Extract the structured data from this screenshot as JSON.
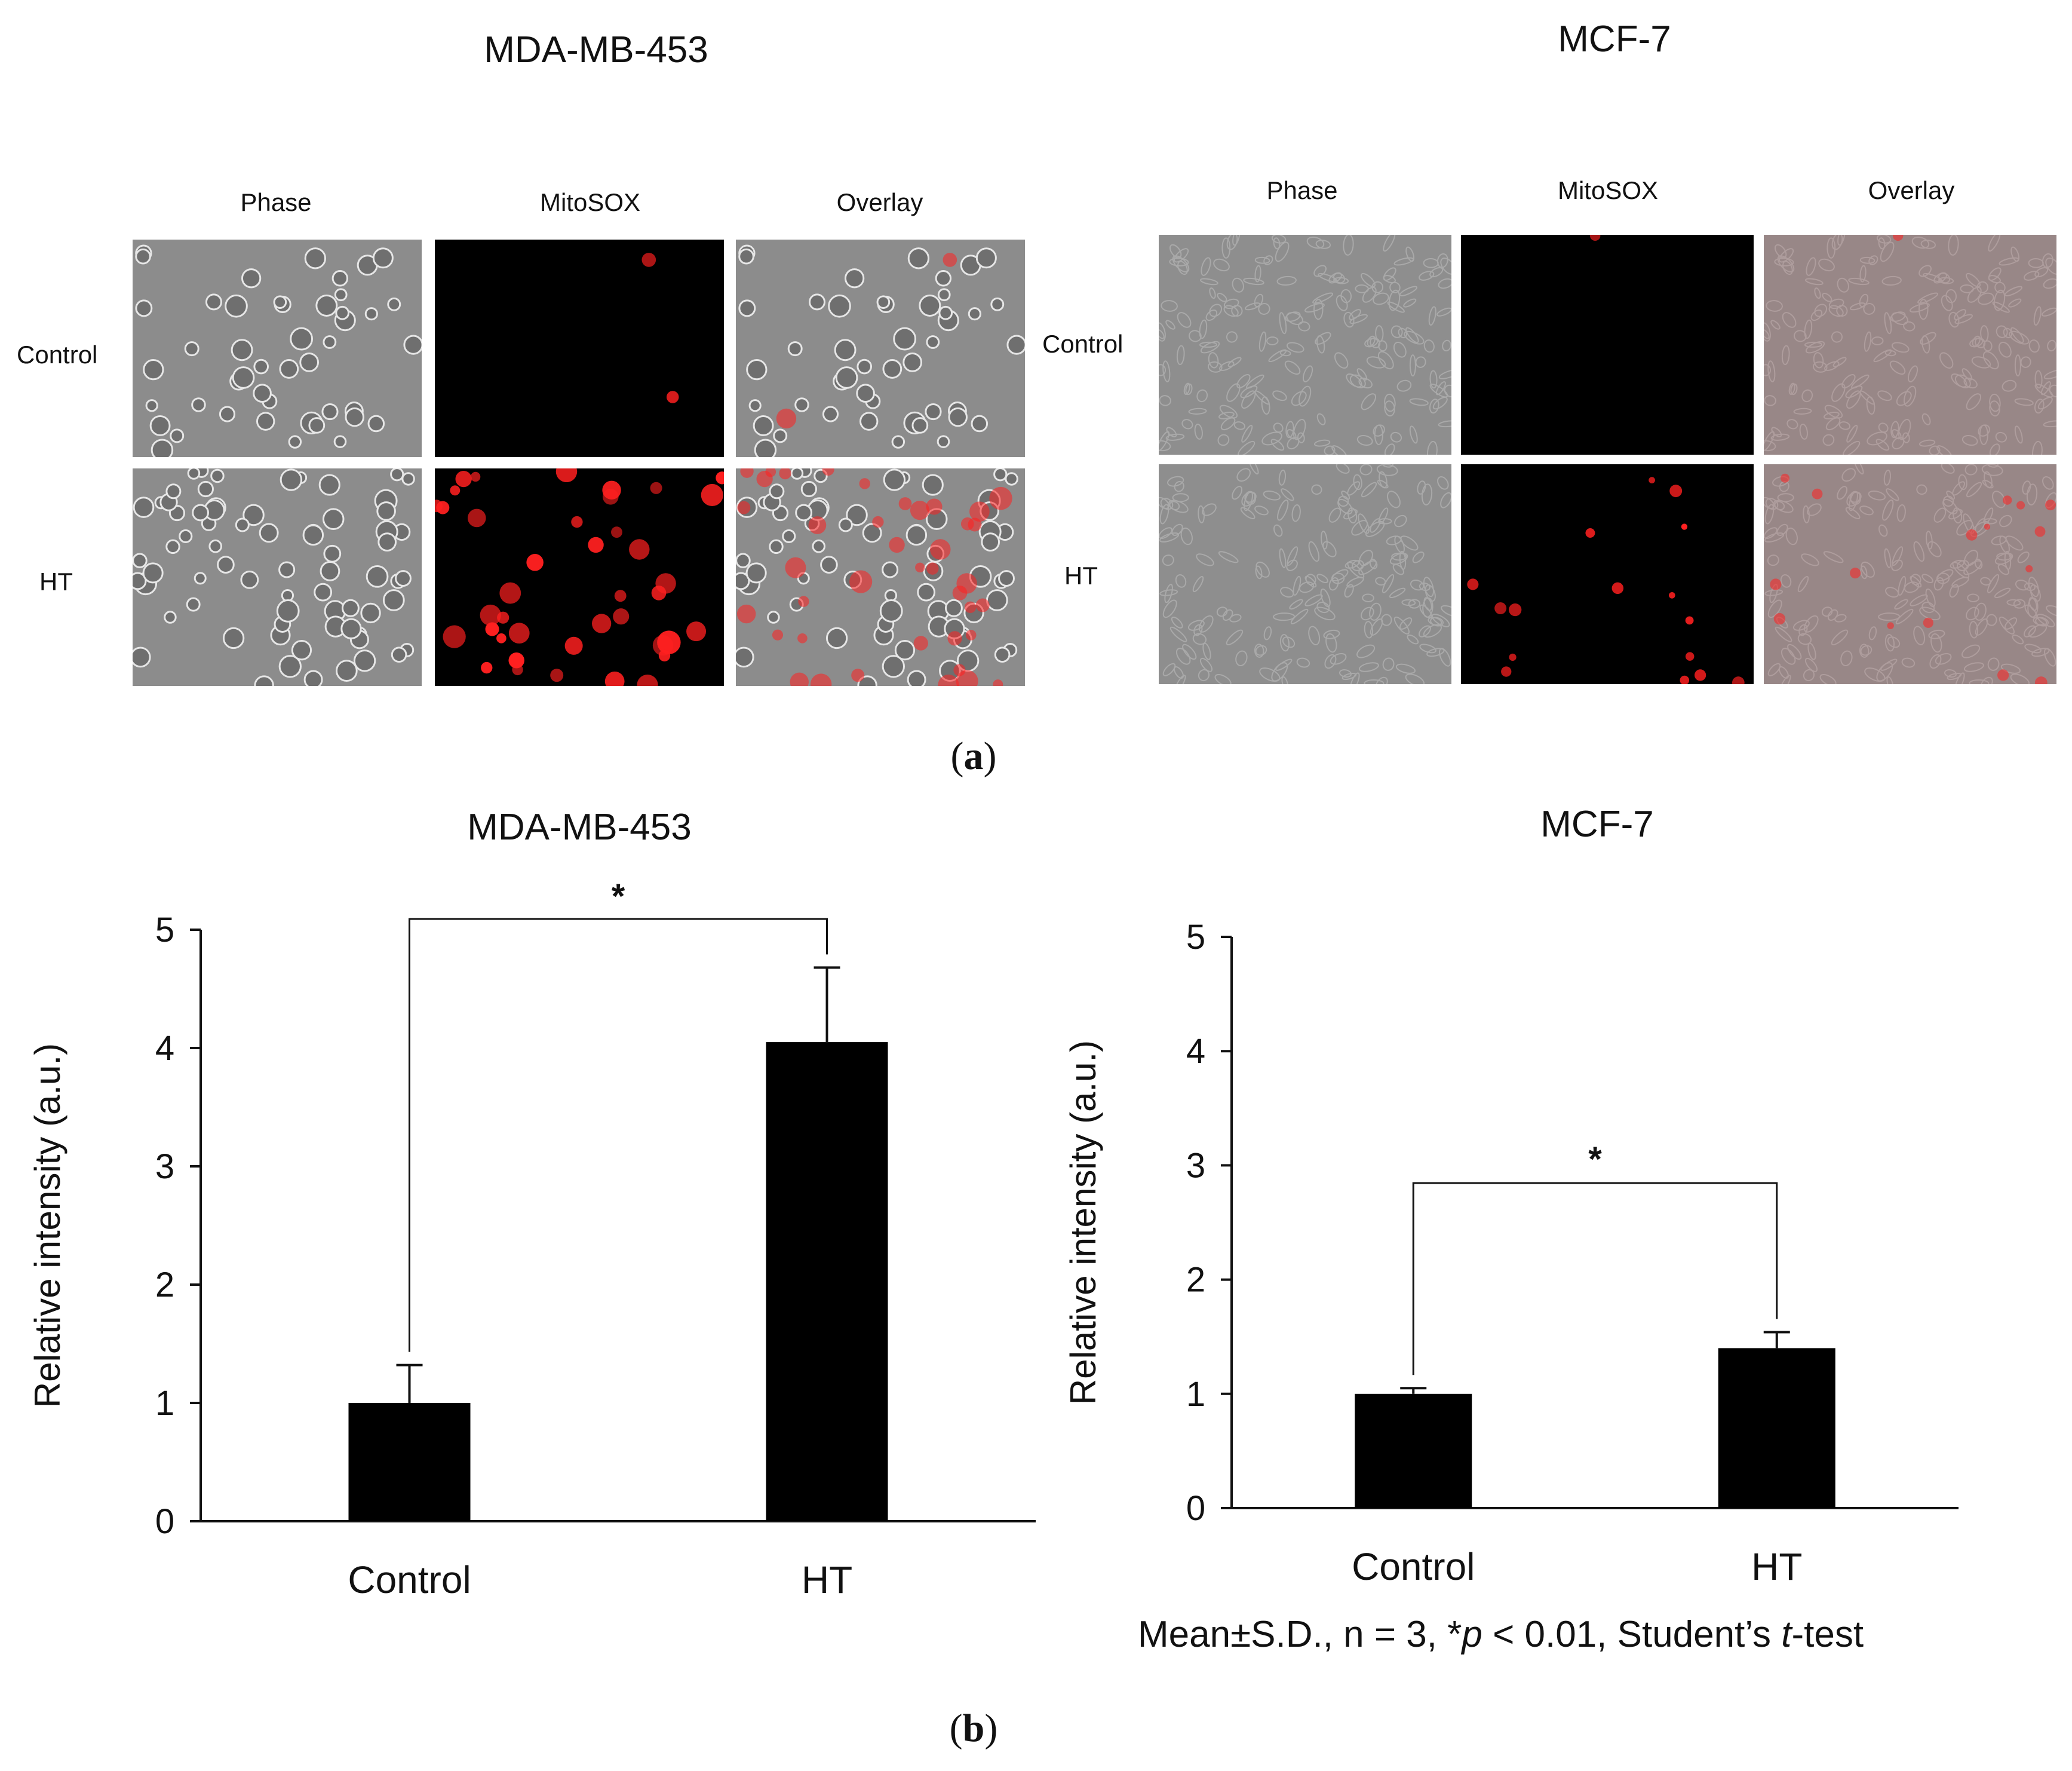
{
  "panel_a": {
    "label": "a",
    "groups": [
      {
        "cell_line": "MDA-MB-453",
        "columns": [
          "Phase",
          "MitoSOX",
          "Overlay"
        ],
        "rows": [
          "Control",
          "HT"
        ]
      },
      {
        "cell_line": "MCF-7",
        "columns": [
          "Phase",
          "MitoSOX",
          "Overlay"
        ],
        "rows": [
          "Control",
          "HT"
        ]
      }
    ]
  },
  "panel_b": {
    "label": "b",
    "footnote": {
      "prefix": "Mean±S.D., n = 3, *",
      "p": "p",
      "mid": " < 0.01, Student’s ",
      "t": "t",
      "suffix": "-test"
    }
  },
  "colors": {
    "bar": "#000000",
    "fluorescence": "#ff2020",
    "phase_background": "#8a8a8a"
  },
  "chart_data": [
    {
      "type": "bar",
      "title": "MDA-MB-453",
      "categories": [
        "Control",
        "HT"
      ],
      "values": [
        1.0,
        4.05
      ],
      "errors": [
        0.32,
        0.63
      ],
      "ylabel": "Relative intensity (a.u.)",
      "xlabel": "",
      "ylim": [
        0,
        5
      ],
      "yticks": [
        0,
        1,
        2,
        3,
        4,
        5
      ],
      "significance": {
        "from": "Control",
        "to": "HT",
        "symbol": "*"
      },
      "grid": false
    },
    {
      "type": "bar",
      "title": "MCF-7",
      "categories": [
        "Control",
        "HT"
      ],
      "values": [
        1.0,
        1.4
      ],
      "errors": [
        0.05,
        0.14
      ],
      "ylabel": "Relative intensity (a.u.)",
      "xlabel": "",
      "ylim": [
        0,
        5
      ],
      "yticks": [
        0,
        1,
        2,
        3,
        4,
        5
      ],
      "significance": {
        "from": "Control",
        "to": "HT",
        "symbol": "*"
      },
      "grid": false
    }
  ]
}
